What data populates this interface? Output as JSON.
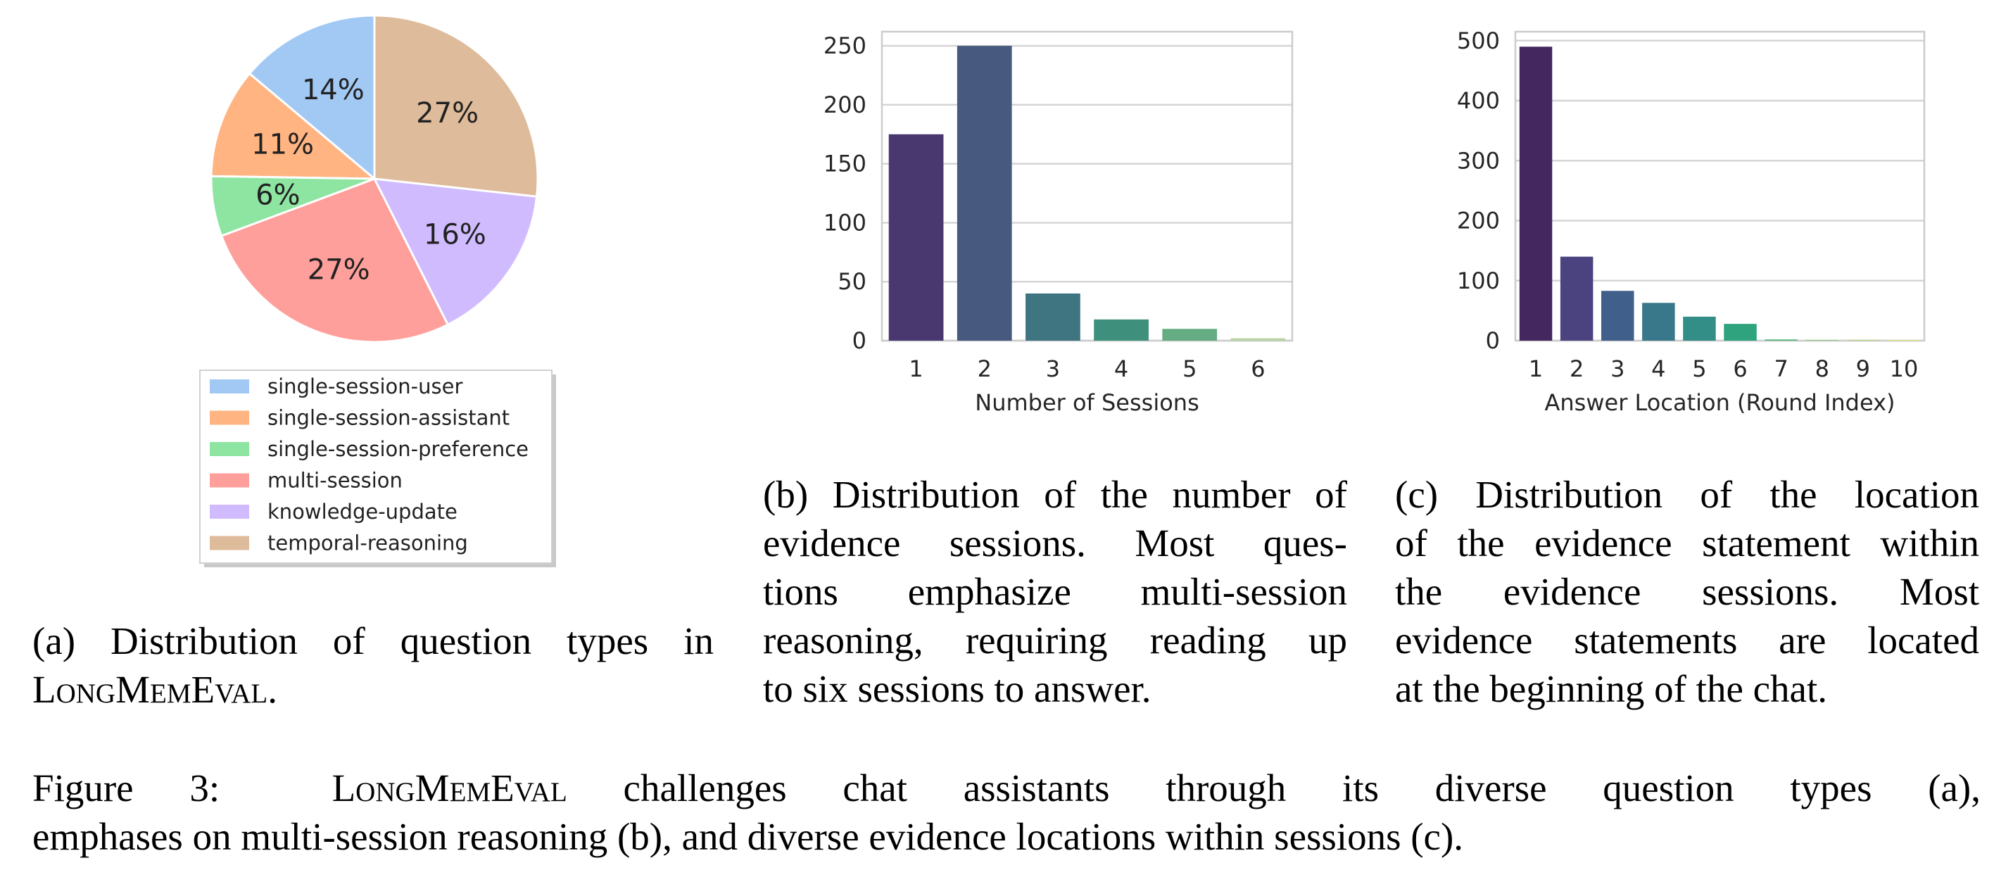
{
  "chart_data": [
    {
      "type": "pie",
      "labels": [
        "single-session-user",
        "single-session-assistant",
        "single-session-preference",
        "multi-session",
        "knowledge-update",
        "temporal-reasoning"
      ],
      "values": [
        14,
        11,
        6,
        27,
        16,
        27
      ],
      "value_labels": [
        "14%",
        "11%",
        "6%",
        "27%",
        "16%",
        "27%"
      ],
      "colors": [
        "#a1c9f4",
        "#ffb482",
        "#8de5a1",
        "#ff9f9b",
        "#d0bbff",
        "#debb9b"
      ],
      "legend_position": "below"
    },
    {
      "type": "bar",
      "categories": [
        "1",
        "2",
        "3",
        "4",
        "5",
        "6"
      ],
      "values": [
        175,
        250,
        40,
        18,
        10,
        2
      ],
      "colors": [
        "#48386f",
        "#47597e",
        "#3e7580",
        "#3f8f7d",
        "#65ac82",
        "#b8d3a0"
      ],
      "xlabel": "Number of Sessions",
      "ylabel": "",
      "ylim": [
        0,
        262
      ],
      "yticks": [
        0,
        50,
        100,
        150,
        200,
        250
      ],
      "grid": true
    },
    {
      "type": "bar",
      "categories": [
        "1",
        "2",
        "3",
        "4",
        "5",
        "6",
        "7",
        "8",
        "9",
        "10"
      ],
      "values": [
        490,
        140,
        83,
        63,
        40,
        28,
        2,
        1,
        1,
        1
      ],
      "colors": [
        "#45275f",
        "#4b4380",
        "#405f8a",
        "#39778a",
        "#338e87",
        "#2fa27e",
        "#4fb775",
        "#82c96c",
        "#b4d869",
        "#e0e56a"
      ],
      "xlabel": "Answer Location (Round Index)",
      "ylabel": "",
      "ylim": [
        0,
        515
      ],
      "yticks": [
        0,
        100,
        200,
        300,
        400,
        500
      ],
      "grid": true
    }
  ],
  "captions": {
    "a": {
      "line1": "(a) Distribution of question types in",
      "name": "LongMemEval",
      "tail": "."
    },
    "b": {
      "lines": [
        "(b) Distribution of the number of",
        "evidence sessions.  Most ques-",
        "tions emphasize multi-session",
        "reasoning, requiring reading up",
        "to six sessions to answer."
      ]
    },
    "c": {
      "lines": [
        "(c) Distribution of the location",
        "of the evidence statement within",
        "the evidence sessions.   Most",
        "evidence statements are located",
        "at the beginning of the chat."
      ]
    },
    "figure": {
      "prefix": "Figure 3:",
      "name": "LongMemEval",
      "line1_rest": "challenges chat assistants through its diverse question types (a),",
      "line2": "emphases on multi-session reasoning (b), and diverse evidence locations within sessions (c)."
    }
  }
}
